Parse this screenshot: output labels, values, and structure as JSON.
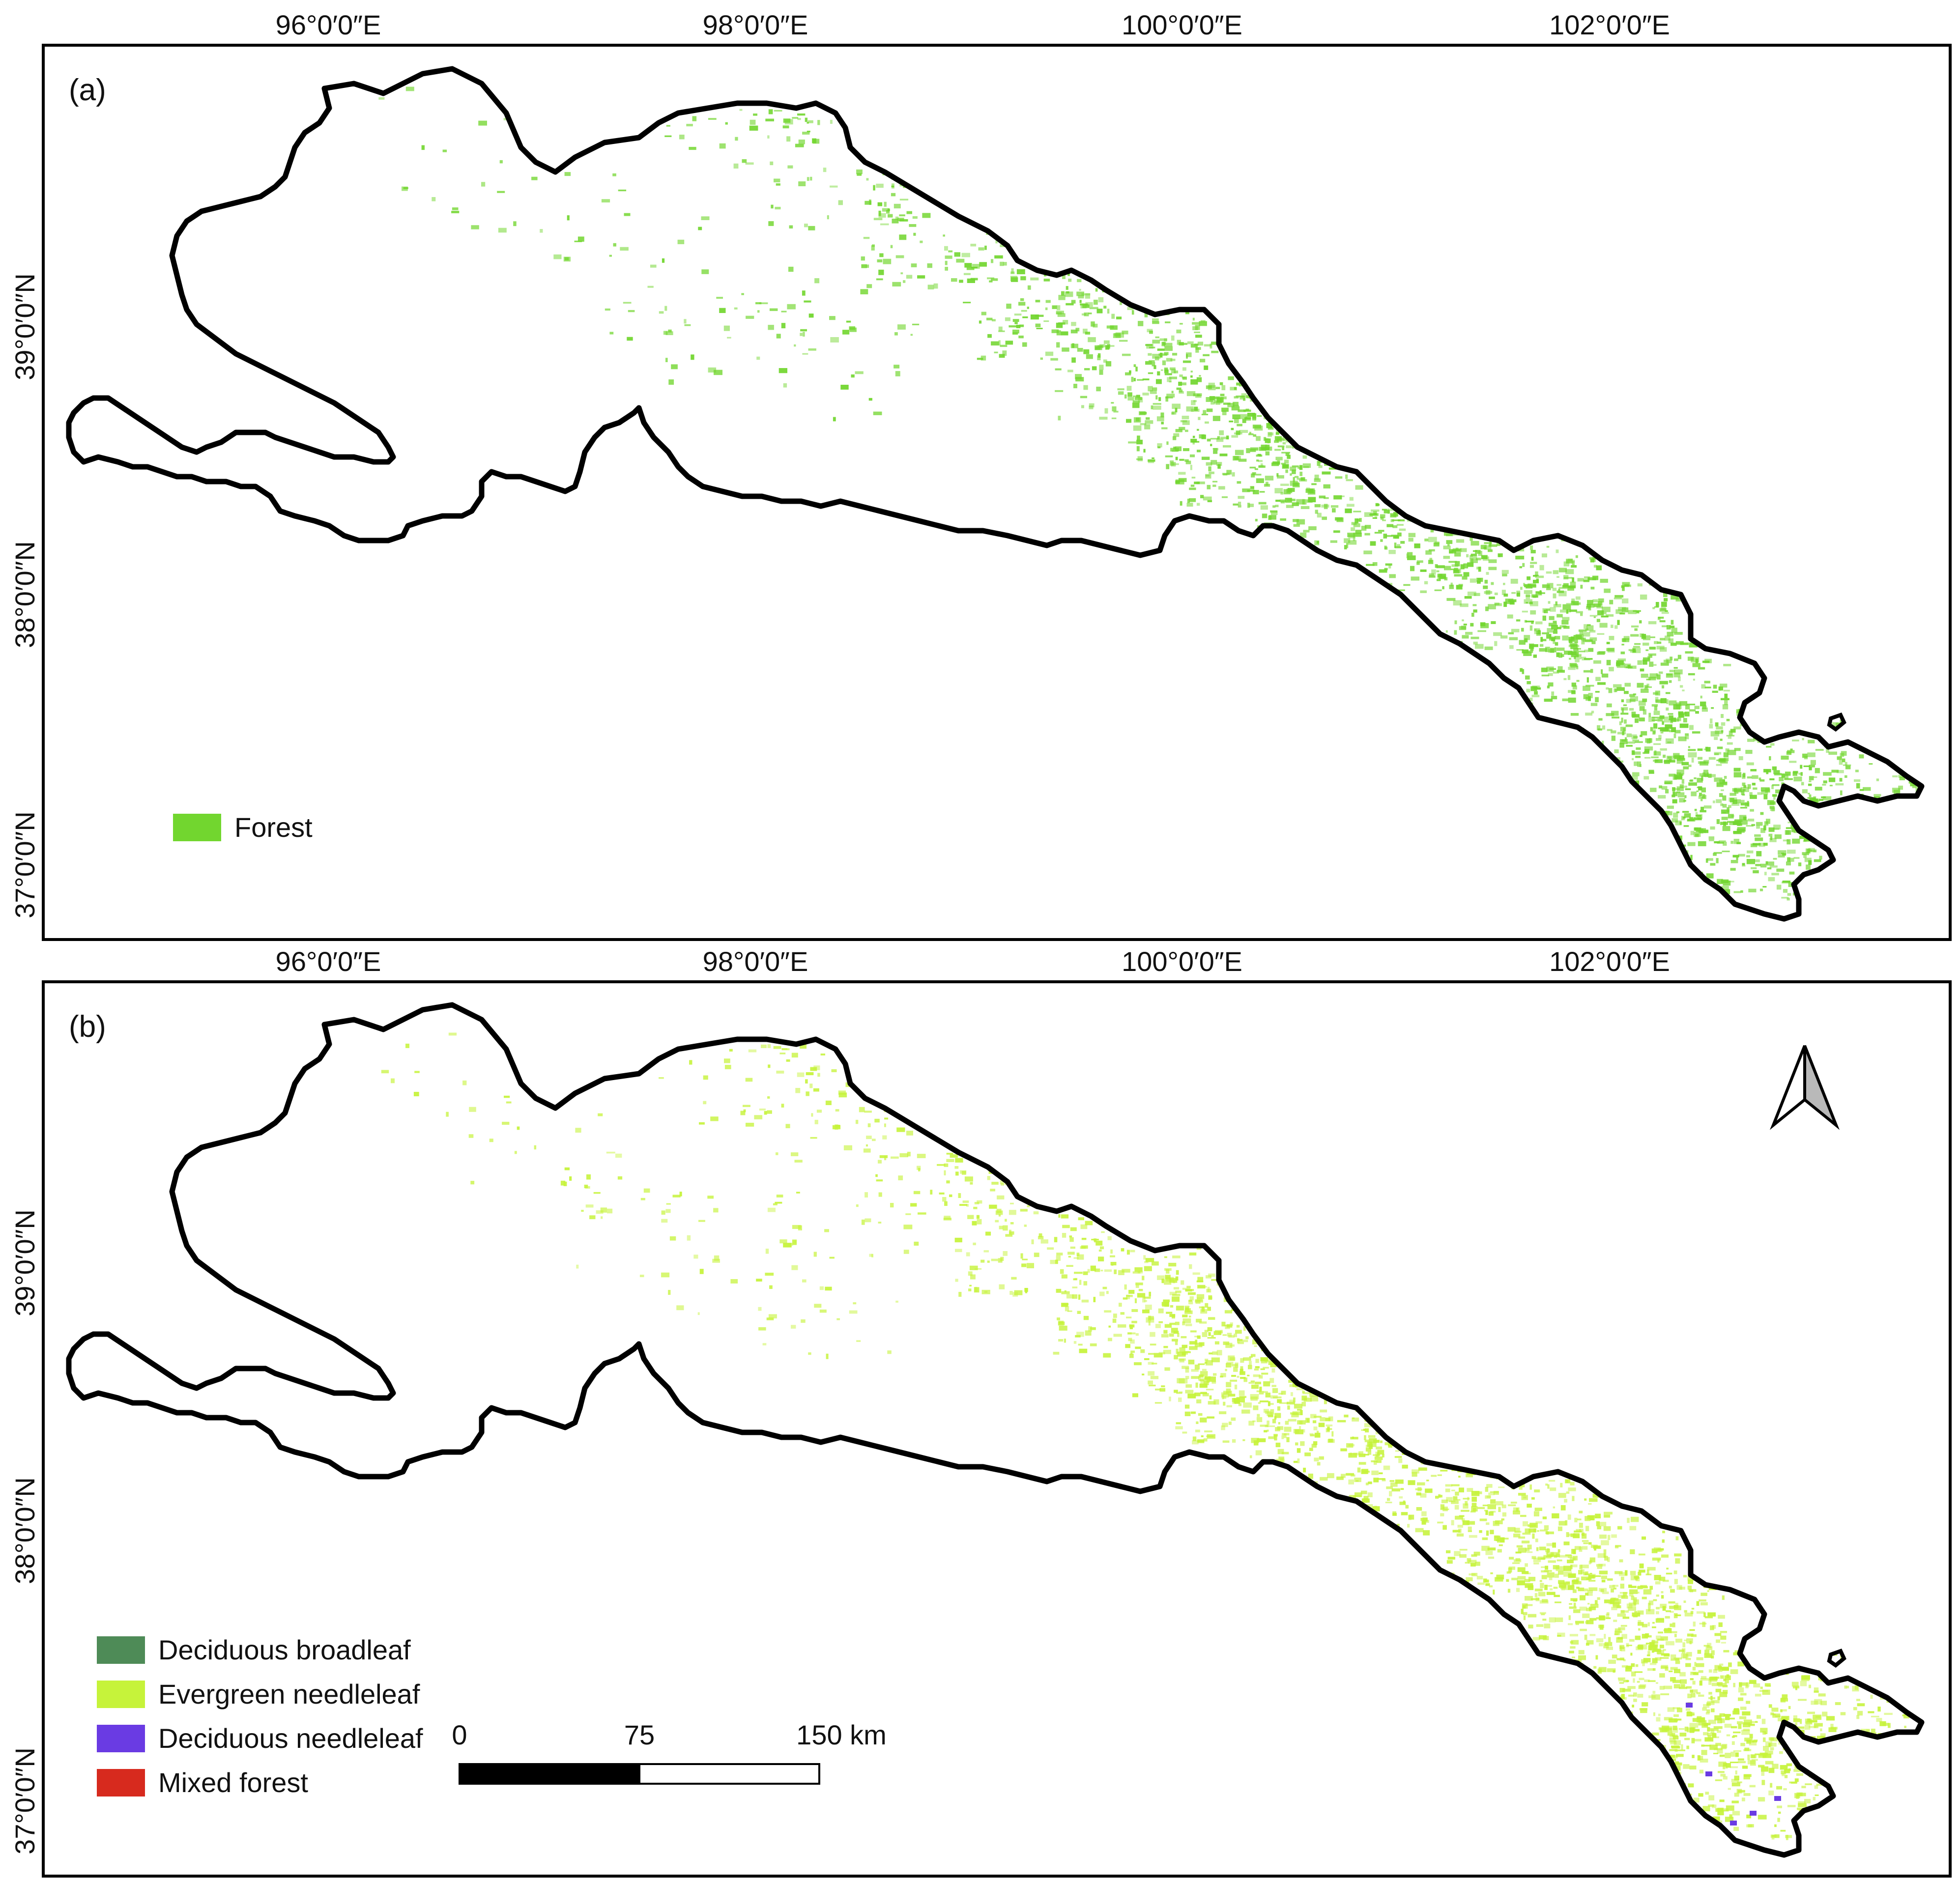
{
  "panels": [
    {
      "label": "(a)",
      "top_ticks": [
        "96°0′0″E",
        "98°0′0″E",
        "100°0′0″E",
        "102°0′0″E"
      ],
      "left_ticks": [
        "39°0′0″N",
        "38°0′0″N",
        "37°0′0″N"
      ],
      "legend": [
        {
          "label": "Forest",
          "color": "#72D62F"
        }
      ]
    },
    {
      "label": "(b)",
      "top_ticks": [
        "96°0′0″E",
        "98°0′0″E",
        "100°0′0″E",
        "102°0′0″E"
      ],
      "left_ticks": [
        "39°0′0″N",
        "38°0′0″N",
        "37°0′0″N"
      ],
      "legend": [
        {
          "label": "Deciduous broadleaf",
          "color": "#4E8B57"
        },
        {
          "label": "Evergreen needleleaf",
          "color": "#C6F33A"
        },
        {
          "label": "Deciduous needleleaf",
          "color": "#6A3BE3"
        },
        {
          "label": "Mixed forest",
          "color": "#D72A1E"
        }
      ],
      "north_arrow": "north-arrow-icon",
      "scale_bar": {
        "labels": [
          "0",
          "75",
          "150 km"
        ]
      }
    }
  ],
  "colors": {
    "boundary": "#000000",
    "forest_a": "#72D62F",
    "forest_b": "#C6F33A",
    "decid_needle": "#6A3BE3"
  }
}
